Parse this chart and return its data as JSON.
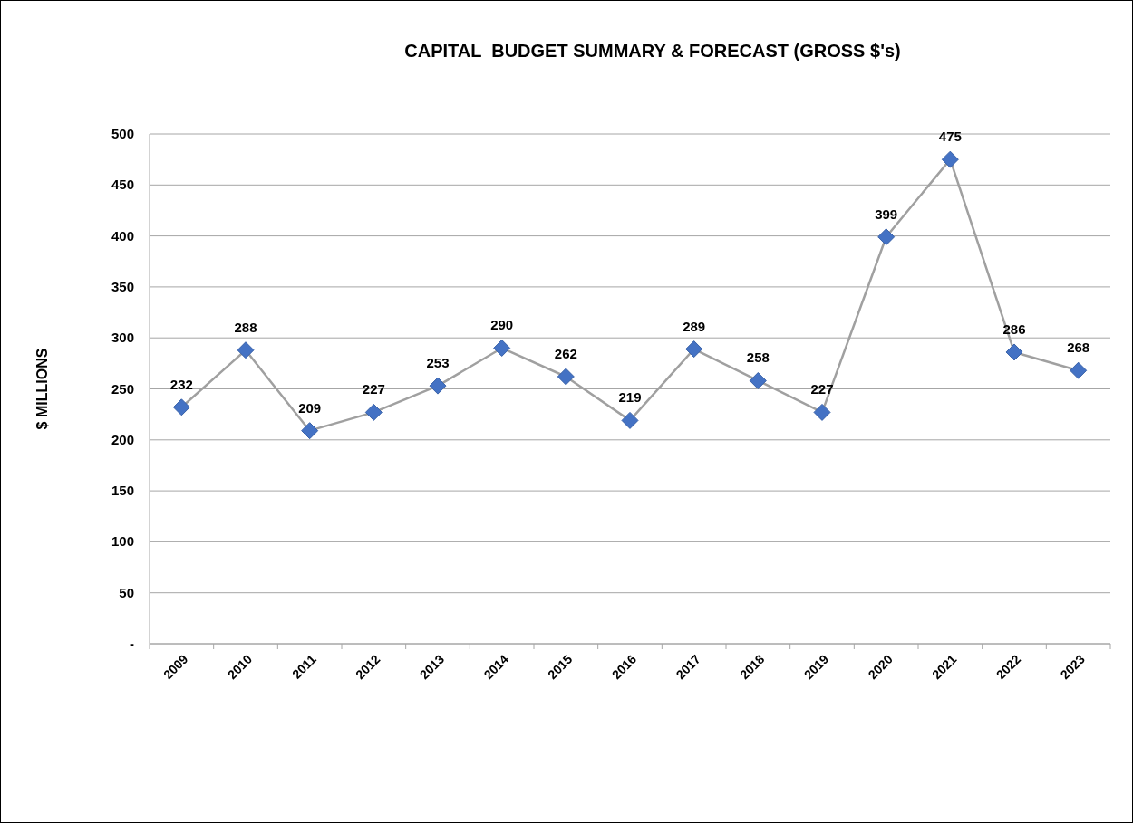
{
  "chart_data": {
    "type": "line",
    "title": "CAPITAL  BUDGET SUMMARY & FORECAST (GROSS $'s)",
    "ylabel": "$ MILLIONS",
    "categories": [
      "2009",
      "2010",
      "2011",
      "2012",
      "2013",
      "2014",
      "2015",
      "2016",
      "2017",
      "2018",
      "2019",
      "2020",
      "2021",
      "2022",
      "2023"
    ],
    "series": [
      {
        "color": "#4472c4",
        "values": [
          232,
          288,
          209,
          227,
          253,
          290,
          262,
          219,
          289,
          258,
          227,
          399,
          475,
          286,
          268
        ]
      }
    ],
    "ylim": [
      0,
      500
    ],
    "yticks": [
      {
        "value": 0,
        "label": "-"
      },
      50,
      100,
      150,
      200,
      250,
      300,
      350,
      400,
      450,
      500
    ],
    "grid": "y",
    "marker": "diamond",
    "line_style": "solid",
    "data_labels": true
  }
}
